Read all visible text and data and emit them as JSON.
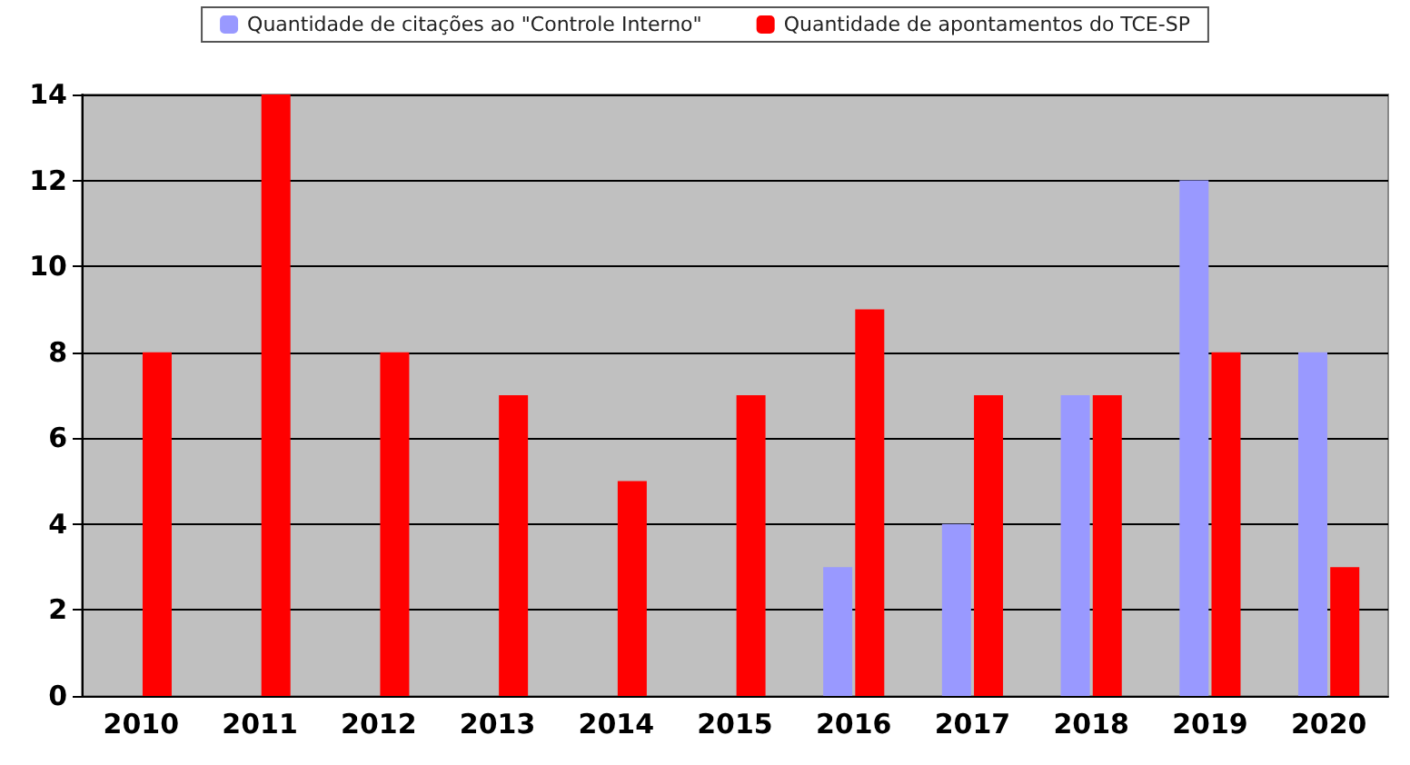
{
  "chart_data": {
    "type": "bar",
    "categories": [
      "2010",
      "2011",
      "2012",
      "2013",
      "2014",
      "2015",
      "2016",
      "2017",
      "2018",
      "2019",
      "2020"
    ],
    "series": [
      {
        "name": "Quantidade de citações ao \"Controle Interno\"",
        "color": "#9999ff",
        "values": [
          0,
          0,
          0,
          0,
          0,
          0,
          3,
          4,
          7,
          12,
          8
        ]
      },
      {
        "name": "Quantidade de apontamentos do TCE-SP",
        "color": "#ff0000",
        "values": [
          8,
          14,
          8,
          7,
          5,
          7,
          9,
          7,
          7,
          8,
          3
        ]
      }
    ],
    "ylim": [
      0,
      14
    ],
    "yticks": [
      0,
      2,
      4,
      6,
      8,
      10,
      12,
      14
    ],
    "grid": "y",
    "legend": "top"
  }
}
